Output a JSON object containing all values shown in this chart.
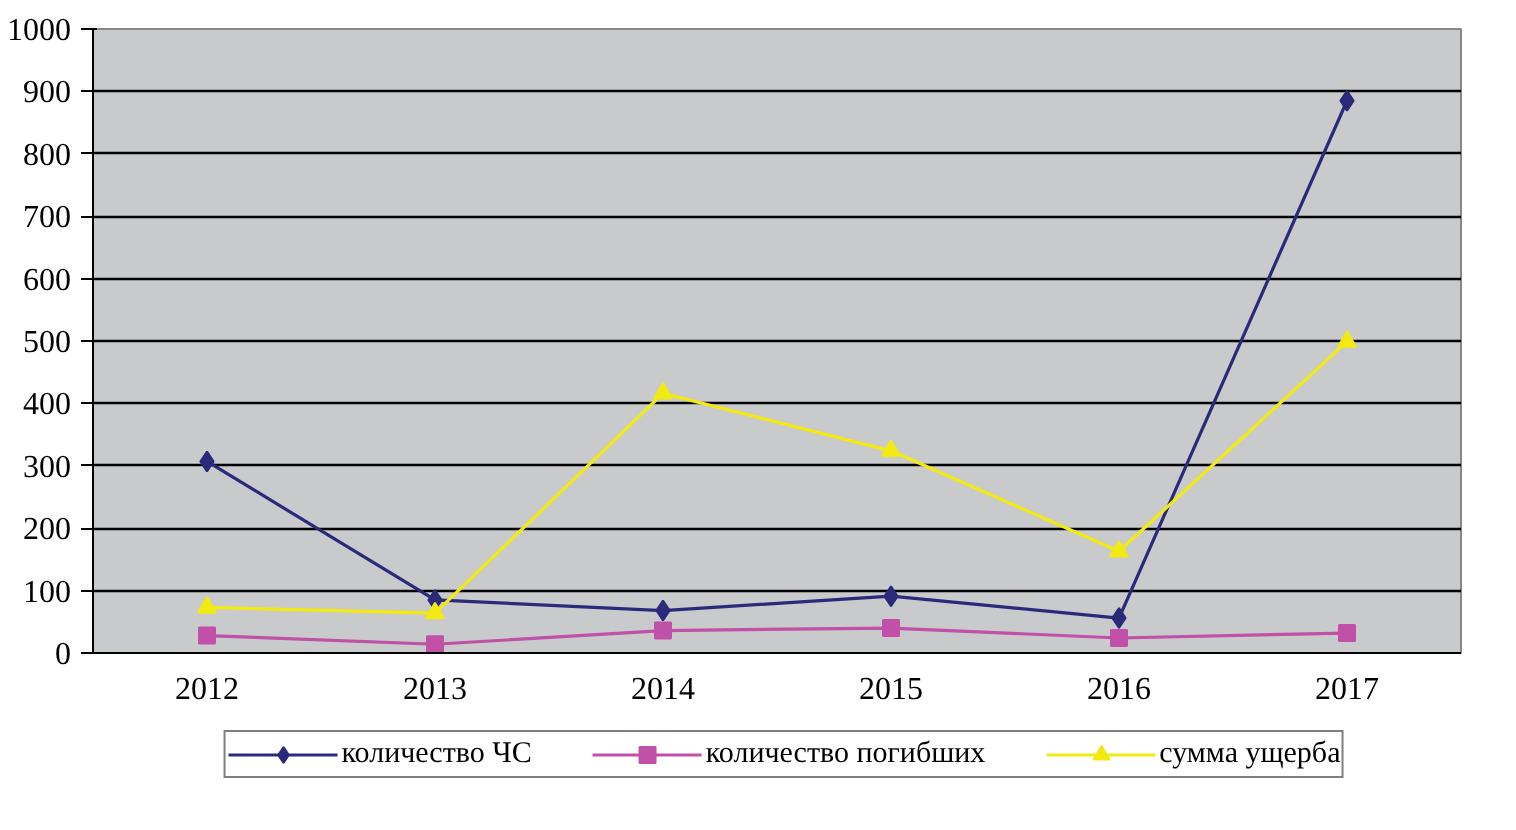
{
  "chart_data": {
    "type": "line",
    "categories": [
      "2012",
      "2013",
      "2014",
      "2015",
      "2016",
      "2017"
    ],
    "ylim": [
      0,
      1000
    ],
    "yticks": [
      0,
      100,
      200,
      300,
      400,
      500,
      600,
      700,
      800,
      900,
      1000
    ],
    "grid": "y",
    "legend": "bottom",
    "series": [
      {
        "name": "количество ЧС",
        "color": "#2b2a7a",
        "marker": "diamond",
        "values": [
          307,
          85,
          68,
          91,
          56,
          885
        ]
      },
      {
        "name": "количество погибших",
        "color": "#c050a8",
        "marker": "square",
        "values": [
          28,
          14,
          36,
          40,
          24,
          32
        ]
      },
      {
        "name": "сумма ущерба",
        "color": "#f2ea10",
        "marker": "triangle",
        "values": [
          73,
          64,
          416,
          324,
          163,
          499
        ]
      }
    ]
  }
}
